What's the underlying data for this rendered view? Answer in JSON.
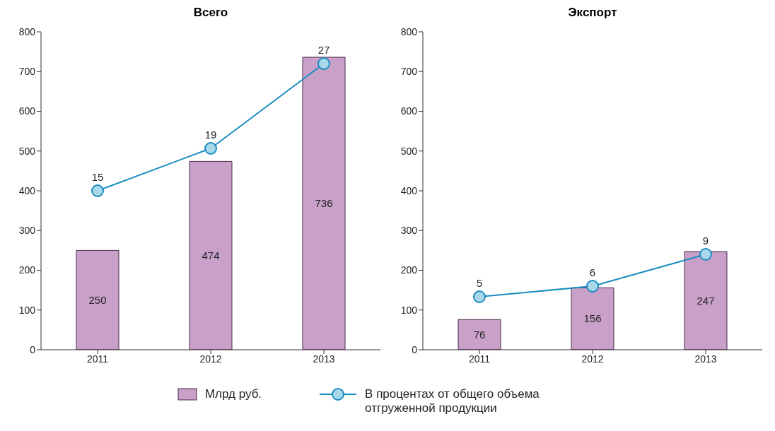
{
  "chart_data": [
    {
      "type": "bar",
      "title": "Всего",
      "categories": [
        "2011",
        "2012",
        "2013"
      ],
      "ylim": [
        0,
        800
      ],
      "yticks": [
        0,
        100,
        200,
        300,
        400,
        500,
        600,
        700,
        800
      ],
      "y2lim": [
        0,
        30
      ],
      "grid": false,
      "data_labels": true,
      "marker": "circle",
      "legend": "bottom",
      "series": [
        {
          "name": "Млрд руб.",
          "color": "#c8a0c8",
          "values": [
            250,
            474,
            736
          ]
        },
        {
          "name": "В процентах от общего объема отгруженной продукции",
          "type": "line",
          "axis": "y2",
          "color": "#1a8cc0",
          "values": [
            15,
            19,
            27
          ]
        }
      ]
    },
    {
      "type": "bar",
      "title": "Экспорт",
      "categories": [
        "2011",
        "2012",
        "2013"
      ],
      "ylim": [
        0,
        800
      ],
      "yticks": [
        0,
        100,
        200,
        300,
        400,
        500,
        600,
        700,
        800
      ],
      "y2lim": [
        0,
        30
      ],
      "grid": false,
      "data_labels": true,
      "marker": "circle",
      "series": [
        {
          "color": "#c8a0c8",
          "values": [
            76,
            156,
            247
          ]
        },
        {
          "type": "line",
          "axis": "y2",
          "color": "#1a8cc0",
          "values": [
            5,
            6,
            9
          ]
        }
      ]
    }
  ]
}
